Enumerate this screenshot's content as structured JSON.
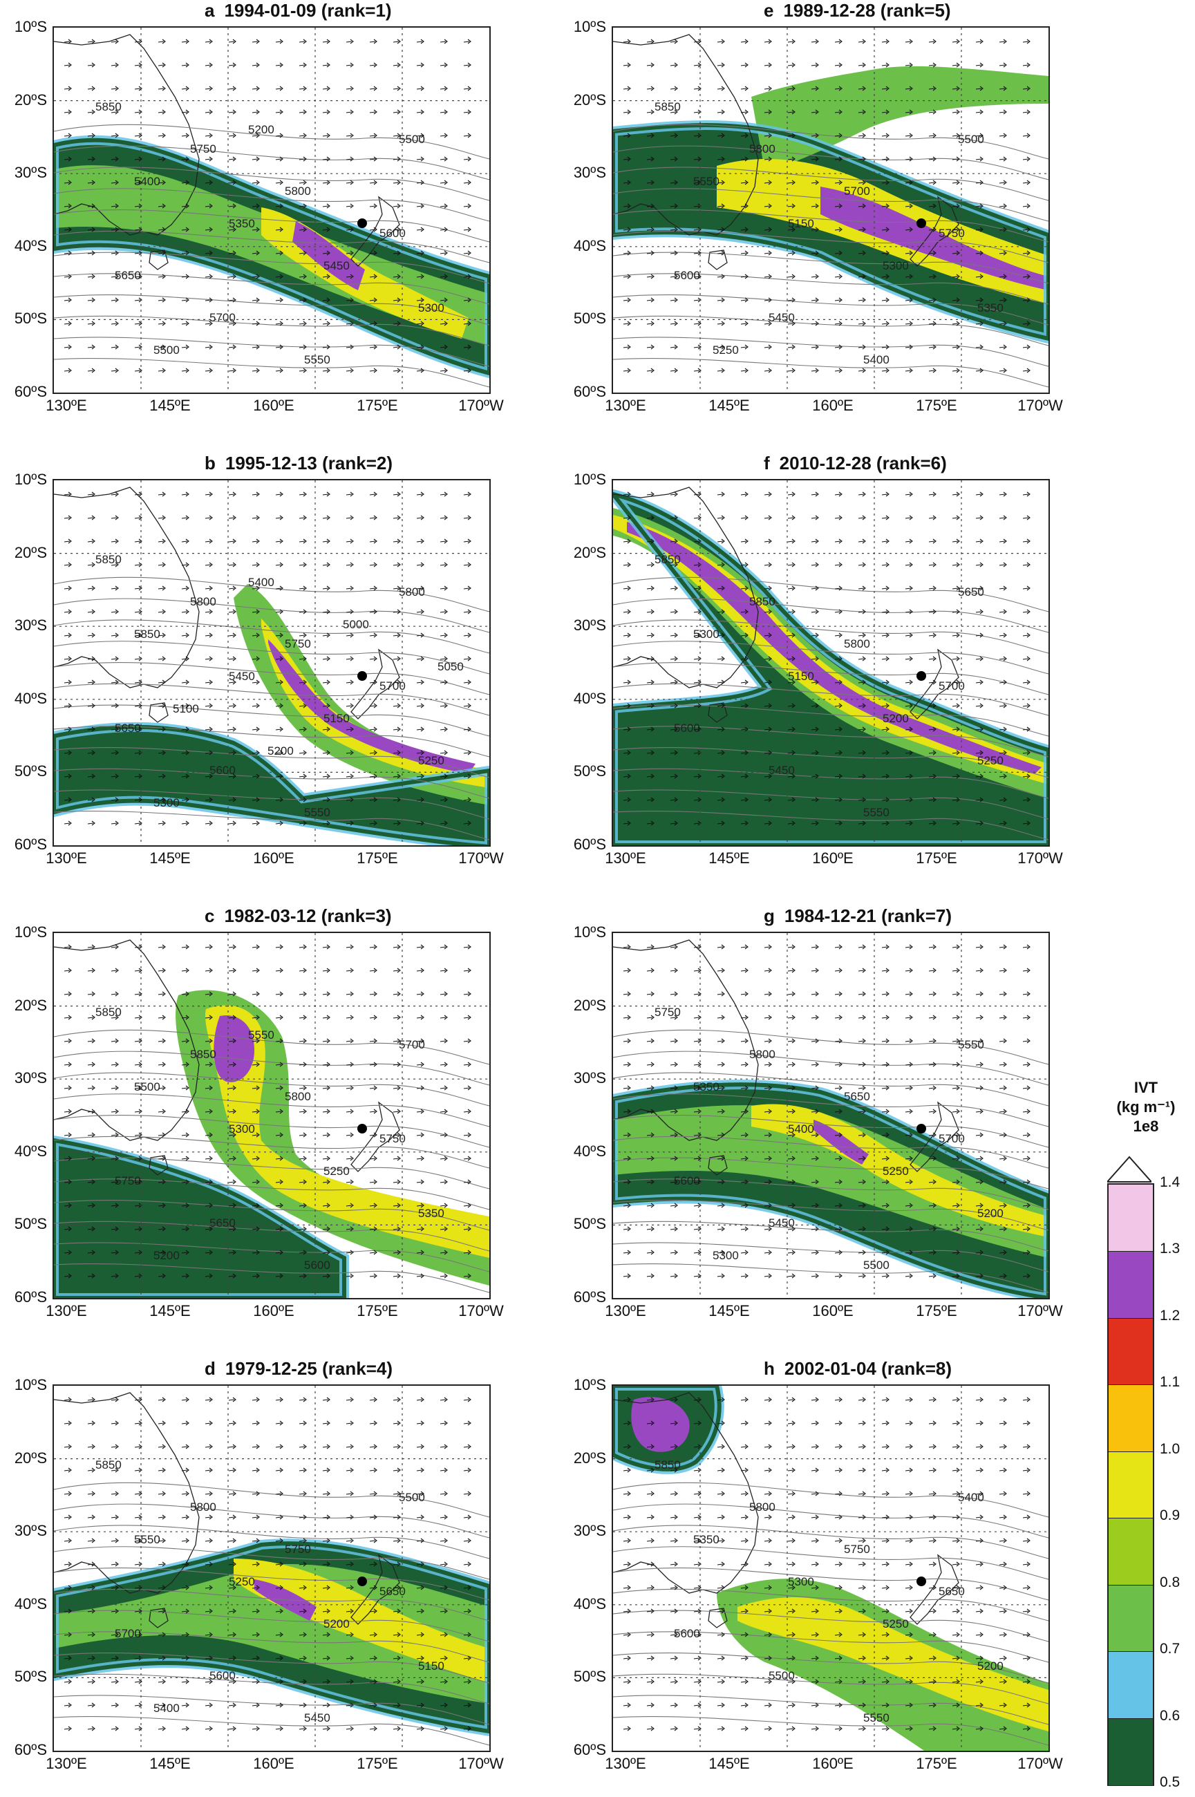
{
  "panels": [
    {
      "letter": "a",
      "date": "1994-01-09",
      "rank": "(rank=1)",
      "contours": [
        "5850",
        "5750",
        "5800",
        "5600",
        "5650",
        "5700",
        "5550",
        "5500",
        "5400",
        "5350",
        "5450",
        "5300",
        "5500",
        "5200"
      ]
    },
    {
      "letter": "b",
      "date": "1995-12-13",
      "rank": "(rank=2)",
      "contours": [
        "5850",
        "5800",
        "5750",
        "5700",
        "5650",
        "5600",
        "5550",
        "5800",
        "5850",
        "5450",
        "5150",
        "5250",
        "5300",
        "5400",
        "5000",
        "5050",
        "5100",
        "5200"
      ]
    },
    {
      "letter": "c",
      "date": "1982-03-12",
      "rank": "(rank=3)",
      "contours": [
        "5850",
        "5850",
        "5800",
        "5750",
        "5750",
        "5650",
        "5600",
        "5700",
        "5500",
        "5300",
        "5250",
        "5350",
        "5200",
        "5550"
      ]
    },
    {
      "letter": "d",
      "date": "1979-12-25",
      "rank": "(rank=4)",
      "contours": [
        "5850",
        "5800",
        "5750",
        "5650",
        "5700",
        "5600",
        "5450",
        "5500",
        "5550",
        "5250",
        "5200",
        "5150",
        "5400"
      ]
    },
    {
      "letter": "e",
      "date": "1989-12-28",
      "rank": "(rank=5)",
      "contours": [
        "5850",
        "5800",
        "5700",
        "5750",
        "5600",
        "5450",
        "5400",
        "5500",
        "5550",
        "5150",
        "5300",
        "5350",
        "5250"
      ]
    },
    {
      "letter": "f",
      "date": "2010-12-28",
      "rank": "(rank=6)",
      "contours": [
        "5850",
        "5850",
        "5800",
        "5700",
        "5600",
        "5450",
        "5550",
        "5650",
        "5300",
        "5150",
        "5200",
        "5250"
      ]
    },
    {
      "letter": "g",
      "date": "1984-12-21",
      "rank": "(rank=7)",
      "contours": [
        "5750",
        "5800",
        "5650",
        "5700",
        "5600",
        "5450",
        "5500",
        "5550",
        "5350",
        "5400",
        "5250",
        "5200",
        "5300"
      ]
    },
    {
      "letter": "h",
      "date": "2002-01-04",
      "rank": "(rank=8)",
      "contours": [
        "5850",
        "5800",
        "5750",
        "5650",
        "5600",
        "5500",
        "5550",
        "5400",
        "5350",
        "5300",
        "5250",
        "5200"
      ]
    }
  ],
  "axes": {
    "lat_labels": [
      "10ºS",
      "20ºS",
      "30ºS",
      "40ºS",
      "50ºS",
      "60ºS"
    ],
    "lon_labels": [
      "130ºE",
      "145ºE",
      "160ºE",
      "175ºE",
      "170ºW"
    ]
  },
  "colorbar": {
    "title_line1": "IVT",
    "title_line2": "(kg m⁻¹)",
    "title_line3": "1e8",
    "ticks": [
      "1.4",
      "1.3",
      "1.2",
      "1.1",
      "1.0",
      "0.9",
      "0.8",
      "0.7",
      "0.6",
      "0.5"
    ],
    "colors": [
      "#f2c6e6",
      "#9a48c2",
      "#e0301e",
      "#f9c00c",
      "#e6e415",
      "#9ccd1e",
      "#6cc04a",
      "#64c3e6",
      "#1b5e33"
    ]
  },
  "map_colors": {
    "land_line": "#222222",
    "grid": "#444444",
    "contour": "#777777",
    "ocean": "#ffffff"
  }
}
